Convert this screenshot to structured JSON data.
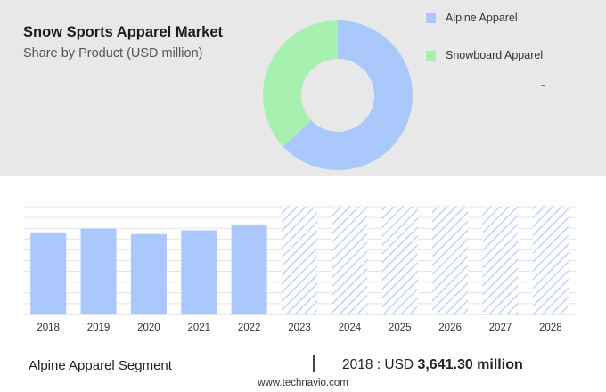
{
  "title": "Snow Sports Apparel Market",
  "subtitle": "Share by Product (USD million)",
  "colors": {
    "alpine": "#aac8fb",
    "snowboard": "#a6f0b0",
    "forecast_hatch": "#c3d4f7",
    "panel_bg": "#e8e8e8"
  },
  "chart_data": [
    {
      "type": "pie",
      "donut": true,
      "title": "Share by Product (USD million)",
      "slices": [
        {
          "name": "Alpine Apparel",
          "value": 63,
          "color": "#aac8fb"
        },
        {
          "name": "Snowboard Apparel",
          "value": 37,
          "color": "#a6f0b0"
        }
      ],
      "legend_position": "right"
    },
    {
      "type": "bar",
      "categories": [
        "2018",
        "2019",
        "2020",
        "2021",
        "2022",
        "2023",
        "2024",
        "2025",
        "2026",
        "2027",
        "2028"
      ],
      "values": [
        3641.3,
        3802,
        3565,
        3738,
        3949,
        4780,
        4780,
        4780,
        4780,
        4780,
        4780
      ],
      "forecast_from": "2023",
      "ylim": [
        0,
        4780
      ],
      "grid": true,
      "xlabel": "",
      "ylabel": ""
    }
  ],
  "footer": {
    "segment": "Alpine Apparel Segment",
    "separator": "|",
    "value_prefix": "2018 : USD",
    "value": "3,641.30 million",
    "source": "www.technavio.com"
  }
}
